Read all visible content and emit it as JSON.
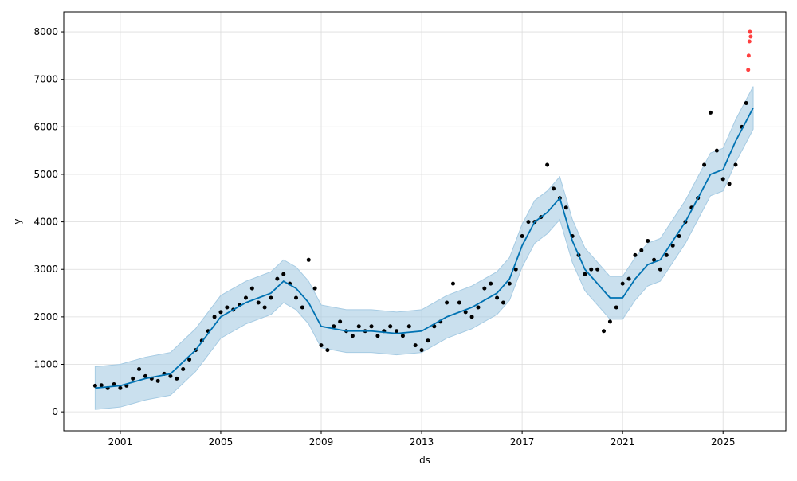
{
  "chart_data": {
    "type": "forecast",
    "x_label": "ds",
    "y_label": "y",
    "xlim": [
      1998.75,
      2027.5
    ],
    "ylim": [
      -400,
      8420
    ],
    "xticks": [
      2001,
      2005,
      2009,
      2013,
      2017,
      2021,
      2025
    ],
    "yticks": [
      0,
      1000,
      2000,
      3000,
      4000,
      5000,
      6000,
      7000,
      8000
    ],
    "grid": true,
    "observed": {
      "color": "#000000",
      "x": [
        2000.0,
        2000.25,
        2000.5,
        2000.75,
        2001.0,
        2001.25,
        2001.5,
        2001.75,
        2002.0,
        2002.25,
        2002.5,
        2002.75,
        2003.0,
        2003.25,
        2003.5,
        2003.75,
        2004.0,
        2004.25,
        2004.5,
        2004.75,
        2005.0,
        2005.25,
        2005.5,
        2005.75,
        2006.0,
        2006.25,
        2006.5,
        2006.75,
        2007.0,
        2007.25,
        2007.5,
        2007.75,
        2008.0,
        2008.25,
        2008.5,
        2008.75,
        2009.0,
        2009.25,
        2009.5,
        2009.75,
        2010.0,
        2010.25,
        2010.5,
        2010.75,
        2011.0,
        2011.25,
        2011.5,
        2011.75,
        2012.0,
        2012.25,
        2012.5,
        2012.75,
        2013.0,
        2013.25,
        2013.5,
        2013.75,
        2014.0,
        2014.25,
        2014.5,
        2014.75,
        2015.0,
        2015.25,
        2015.5,
        2015.75,
        2016.0,
        2016.25,
        2016.5,
        2016.75,
        2017.0,
        2017.25,
        2017.5,
        2017.75,
        2018.0,
        2018.25,
        2018.5,
        2018.75,
        2019.0,
        2019.25,
        2019.5,
        2019.75,
        2020.0,
        2020.25,
        2020.5,
        2020.75,
        2021.0,
        2021.25,
        2021.5,
        2021.75,
        2022.0,
        2022.25,
        2022.5,
        2022.75,
        2023.0,
        2023.25,
        2023.5,
        2023.75,
        2024.0,
        2024.25,
        2024.5,
        2024.75,
        2025.0,
        2025.25,
        2025.5,
        2025.75,
        2025.92
      ],
      "values": [
        550,
        560,
        500,
        580,
        500,
        550,
        700,
        900,
        750,
        700,
        650,
        800,
        750,
        700,
        900,
        1100,
        1300,
        1500,
        1700,
        2000,
        2100,
        2200,
        2150,
        2250,
        2400,
        2600,
        2300,
        2200,
        2400,
        2800,
        2900,
        2700,
        2400,
        2200,
        3200,
        2600,
        1400,
        1300,
        1800,
        1900,
        1700,
        1600,
        1800,
        1700,
        1800,
        1600,
        1700,
        1800,
        1700,
        1600,
        1800,
        1400,
        1300,
        1500,
        1800,
        1900,
        2300,
        2700,
        2300,
        2100,
        2000,
        2200,
        2600,
        2700,
        2400,
        2300,
        2700,
        3000,
        3700,
        4000,
        4000,
        4100,
        5200,
        4700,
        4500,
        4300,
        3700,
        3300,
        2900,
        3000,
        3000,
        1700,
        1900,
        2200,
        2700,
        2800,
        3300,
        3400,
        3600,
        3200,
        3000,
        3300,
        3500,
        3700,
        4000,
        4300,
        4500,
        5200,
        6300,
        5500,
        4900,
        4800,
        5200,
        6000,
        6500
      ]
    },
    "future": {
      "color": "#ff0000",
      "x": [
        2026.0,
        2026.02,
        2026.05,
        2026.07,
        2026.1
      ],
      "values": [
        7200,
        7500,
        7800,
        8000,
        7900
      ]
    },
    "forecast": {
      "color": "#0072b2",
      "band_color": "#a6cbe3",
      "x": [
        2000.0,
        2001.0,
        2002.0,
        2003.0,
        2004.0,
        2005.0,
        2006.0,
        2007.0,
        2007.5,
        2008.0,
        2008.5,
        2009.0,
        2010.0,
        2011.0,
        2012.0,
        2013.0,
        2014.0,
        2015.0,
        2016.0,
        2016.5,
        2017.0,
        2017.5,
        2018.0,
        2018.5,
        2019.0,
        2019.5,
        2020.0,
        2020.5,
        2021.0,
        2021.5,
        2022.0,
        2022.5,
        2023.0,
        2023.5,
        2024.0,
        2024.5,
        2025.0,
        2025.5,
        2026.0,
        2026.2
      ],
      "values": [
        500,
        550,
        700,
        800,
        1300,
        2000,
        2300,
        2500,
        2750,
        2600,
        2300,
        1800,
        1700,
        1700,
        1650,
        1700,
        2000,
        2200,
        2500,
        2800,
        3500,
        4000,
        4200,
        4500,
        3600,
        3000,
        2700,
        2400,
        2400,
        2800,
        3100,
        3200,
        3600,
        4000,
        4500,
        5000,
        5100,
        5700,
        6200,
        6400
      ],
      "lower": [
        50,
        100,
        250,
        350,
        850,
        1550,
        1850,
        2050,
        2300,
        2150,
        1850,
        1350,
        1250,
        1250,
        1200,
        1250,
        1550,
        1750,
        2050,
        2350,
        3050,
        3550,
        3750,
        4050,
        3150,
        2550,
        2250,
        1950,
        1950,
        2350,
        2650,
        2750,
        3150,
        3550,
        4050,
        4550,
        4650,
        5250,
        5750,
        5950
      ],
      "upper": [
        950,
        1000,
        1150,
        1250,
        1750,
        2450,
        2750,
        2950,
        3200,
        3050,
        2750,
        2250,
        2150,
        2150,
        2100,
        2150,
        2450,
        2650,
        2950,
        3250,
        3950,
        4450,
        4650,
        4950,
        4050,
        3450,
        3150,
        2850,
        2850,
        3250,
        3550,
        3650,
        4050,
        4450,
        4950,
        5450,
        5550,
        6150,
        6650,
        6850
      ]
    }
  }
}
